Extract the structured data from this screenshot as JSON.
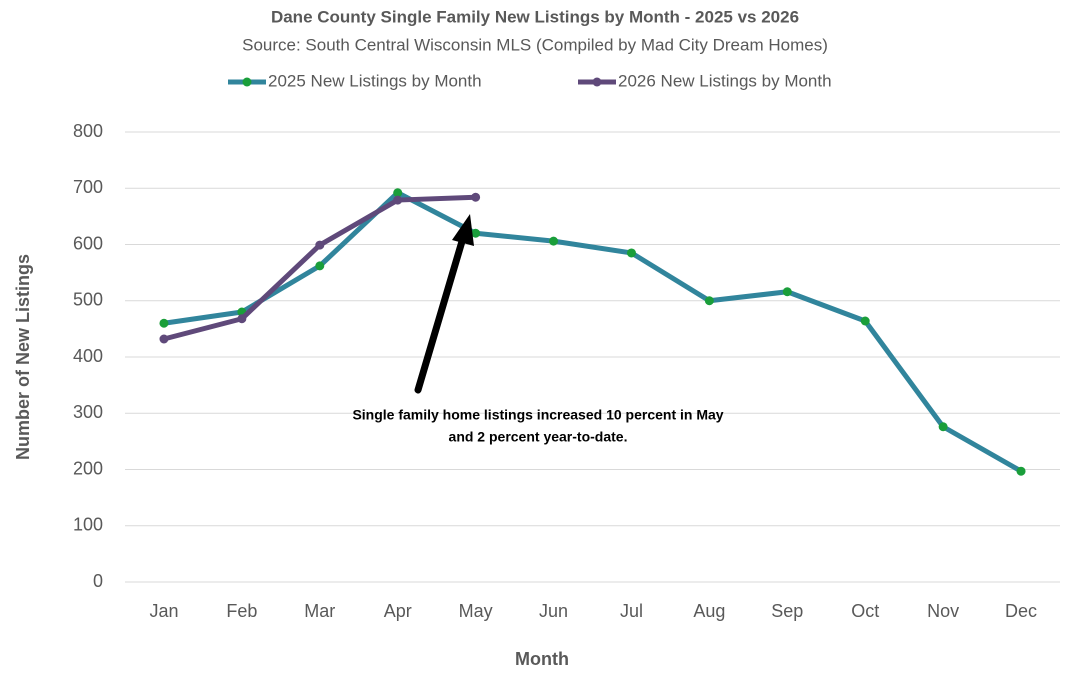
{
  "chart_data": {
    "type": "line",
    "title": "Dane County Single Family New Listings by Month - 2025 vs 2026",
    "subtitle": "Source: South Central Wisconsin MLS (Compiled by Mad City Dream Homes)",
    "x_label": "Month",
    "y_label": "Number of New Listings",
    "annotation": [
      "Single family home listings increased 10 percent in May",
      "and 2 percent year-to-date."
    ],
    "categories": [
      "Jan",
      "Feb",
      "Mar",
      "Apr",
      "May",
      "Jun",
      "Jul",
      "Aug",
      "Sep",
      "Oct",
      "Nov",
      "Dec"
    ],
    "series": [
      {
        "name": "2025 New Listings by Month",
        "color": "#31859c",
        "marker_color": "#1a9e3a",
        "values": [
          460,
          480,
          562,
          692,
          620,
          606,
          585,
          500,
          516,
          464,
          276,
          197
        ]
      },
      {
        "name": "2026 New Listings by Month",
        "color": "#5f497a",
        "marker_color": "#5f497a",
        "values": [
          432,
          468,
          599,
          679,
          684,
          null,
          null,
          null,
          null,
          null,
          null,
          null
        ]
      }
    ],
    "ylim": [
      0,
      800
    ],
    "yticks": [
      0,
      100,
      200,
      300,
      400,
      500,
      600,
      700,
      800
    ],
    "grid": true,
    "legend": "top"
  }
}
